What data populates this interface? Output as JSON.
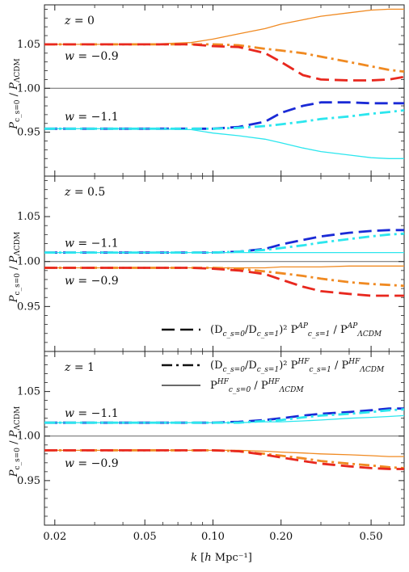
{
  "figure": {
    "ylabel": "P_{c_s=0} / P_ΛCDM",
    "xlabel": "k [h Mpc⁻¹]",
    "x_ticks": [
      "0.02",
      "0.05",
      "0.10",
      "0.20",
      "0.50"
    ],
    "y_ticks": [
      "0.95",
      "1.00",
      "1.05"
    ],
    "legend": [
      {
        "style": "dashed",
        "text_prefix": "(D",
        "text": "(D_{c_s=0}/D_{c_s=1})² P^{AP}_{c_s=1} / P^{AP}_{ΛCDM}"
      },
      {
        "style": "dash-dot",
        "text": "(D_{c_s=0}/D_{c_s=1})² P^{HF}_{c_s=1} / P^{HF}_{ΛCDM}"
      },
      {
        "style": "solid",
        "text": "P^{HF}_{c_s=0} / P^{HF}_{ΛCDM}"
      }
    ]
  },
  "colors": {
    "w_minus_0_9_dashed": "#e8281e",
    "w_minus_0_9_dashdot": "#f08a22",
    "w_minus_0_9_solid": "#f08a22",
    "w_minus_1_1_dashed": "#1a2ad6",
    "w_minus_1_1_dashdot": "#2ce6ee",
    "w_minus_1_1_solid": "#2ce6ee",
    "reference": "#666666"
  },
  "chart_data": [
    {
      "type": "line",
      "panel_label": "z = 0",
      "annotations": [
        "w = −0.9",
        "w = −1.1"
      ],
      "x_scale": "log",
      "xlim": [
        0.018,
        0.7
      ],
      "ylim": [
        0.9,
        1.095
      ],
      "reference_line": 1.0,
      "x": [
        0.018,
        0.03,
        0.05,
        0.08,
        0.1,
        0.13,
        0.17,
        0.2,
        0.25,
        0.3,
        0.4,
        0.5,
        0.6,
        0.7
      ],
      "series": [
        {
          "key": "w_minus_0_9_solid",
          "values": [
            1.05,
            1.05,
            1.05,
            1.052,
            1.056,
            1.062,
            1.068,
            1.073,
            1.078,
            1.082,
            1.086,
            1.089,
            1.09,
            1.09
          ]
        },
        {
          "key": "w_minus_0_9_dashdot",
          "values": [
            1.05,
            1.05,
            1.05,
            1.05,
            1.05,
            1.049,
            1.045,
            1.043,
            1.04,
            1.036,
            1.03,
            1.025,
            1.021,
            1.019
          ]
        },
        {
          "key": "w_minus_0_9_dashed",
          "values": [
            1.05,
            1.05,
            1.05,
            1.05,
            1.048,
            1.047,
            1.04,
            1.03,
            1.015,
            1.01,
            1.009,
            1.009,
            1.01,
            1.013
          ]
        },
        {
          "key": "w_minus_1_1_dashed",
          "values": [
            0.954,
            0.954,
            0.954,
            0.954,
            0.954,
            0.956,
            0.962,
            0.972,
            0.98,
            0.984,
            0.984,
            0.983,
            0.983,
            0.983
          ]
        },
        {
          "key": "w_minus_1_1_dashdot",
          "values": [
            0.954,
            0.954,
            0.954,
            0.954,
            0.954,
            0.955,
            0.957,
            0.959,
            0.962,
            0.965,
            0.968,
            0.971,
            0.973,
            0.975
          ]
        },
        {
          "key": "w_minus_1_1_solid",
          "values": [
            0.954,
            0.954,
            0.954,
            0.953,
            0.949,
            0.946,
            0.942,
            0.938,
            0.932,
            0.928,
            0.924,
            0.921,
            0.92,
            0.92
          ]
        }
      ]
    },
    {
      "type": "line",
      "panel_label": "z = 0.5",
      "annotations": [
        "w = −1.1",
        "w = −0.9"
      ],
      "x_scale": "log",
      "xlim": [
        0.018,
        0.7
      ],
      "ylim": [
        0.9,
        1.095
      ],
      "reference_line": 1.0,
      "x": [
        0.018,
        0.03,
        0.05,
        0.08,
        0.1,
        0.13,
        0.17,
        0.2,
        0.25,
        0.3,
        0.4,
        0.5,
        0.6,
        0.7
      ],
      "series": [
        {
          "key": "w_minus_1_1_dashed",
          "values": [
            1.01,
            1.01,
            1.01,
            1.01,
            1.01,
            1.011,
            1.014,
            1.019,
            1.024,
            1.028,
            1.032,
            1.034,
            1.035,
            1.035
          ]
        },
        {
          "key": "w_minus_1_1_dashdot",
          "values": [
            1.01,
            1.01,
            1.01,
            1.01,
            1.01,
            1.011,
            1.013,
            1.015,
            1.018,
            1.021,
            1.025,
            1.028,
            1.03,
            1.031
          ]
        },
        {
          "key": "w_minus_1_1_solid",
          "values": [
            1.01,
            1.01,
            1.01,
            1.01,
            1.01,
            1.01,
            1.01,
            1.01,
            1.01,
            1.01,
            1.01,
            1.01,
            1.01,
            1.01
          ]
        },
        {
          "key": "w_minus_0_9_solid",
          "values": [
            0.993,
            0.993,
            0.993,
            0.993,
            0.993,
            0.993,
            0.993,
            0.994,
            0.994,
            0.994,
            0.995,
            0.995,
            0.995,
            0.995
          ]
        },
        {
          "key": "w_minus_0_9_dashdot",
          "values": [
            0.993,
            0.993,
            0.993,
            0.993,
            0.993,
            0.992,
            0.989,
            0.987,
            0.984,
            0.981,
            0.977,
            0.975,
            0.974,
            0.973
          ]
        },
        {
          "key": "w_minus_0_9_dashed",
          "values": [
            0.993,
            0.993,
            0.993,
            0.993,
            0.992,
            0.99,
            0.986,
            0.98,
            0.972,
            0.967,
            0.964,
            0.962,
            0.962,
            0.962
          ]
        }
      ]
    },
    {
      "type": "line",
      "panel_label": "z = 1",
      "annotations": [
        "w = −1.1",
        "w = −0.9"
      ],
      "x_scale": "log",
      "xlim": [
        0.018,
        0.7
      ],
      "ylim": [
        0.9,
        1.095
      ],
      "reference_line": 1.0,
      "x": [
        0.018,
        0.03,
        0.05,
        0.08,
        0.1,
        0.13,
        0.17,
        0.2,
        0.25,
        0.3,
        0.4,
        0.5,
        0.6,
        0.7
      ],
      "series": [
        {
          "key": "w_minus_1_1_dashed",
          "values": [
            1.015,
            1.015,
            1.015,
            1.015,
            1.015,
            1.016,
            1.018,
            1.02,
            1.023,
            1.025,
            1.027,
            1.029,
            1.031,
            1.031
          ]
        },
        {
          "key": "w_minus_1_1_dashdot",
          "values": [
            1.015,
            1.015,
            1.015,
            1.015,
            1.015,
            1.015,
            1.017,
            1.018,
            1.021,
            1.023,
            1.025,
            1.027,
            1.029,
            1.03
          ]
        },
        {
          "key": "w_minus_1_1_solid",
          "values": [
            1.015,
            1.015,
            1.015,
            1.015,
            1.015,
            1.015,
            1.016,
            1.016,
            1.017,
            1.018,
            1.02,
            1.021,
            1.022,
            1.023
          ]
        },
        {
          "key": "w_minus_0_9_solid",
          "values": [
            0.984,
            0.984,
            0.984,
            0.984,
            0.984,
            0.984,
            0.983,
            0.982,
            0.981,
            0.98,
            0.979,
            0.978,
            0.977,
            0.977
          ]
        },
        {
          "key": "w_minus_0_9_dashdot",
          "values": [
            0.984,
            0.984,
            0.984,
            0.984,
            0.984,
            0.983,
            0.98,
            0.978,
            0.975,
            0.972,
            0.969,
            0.967,
            0.965,
            0.964
          ]
        },
        {
          "key": "w_minus_0_9_dashed",
          "values": [
            0.984,
            0.984,
            0.984,
            0.984,
            0.984,
            0.983,
            0.979,
            0.976,
            0.972,
            0.969,
            0.966,
            0.964,
            0.963,
            0.963
          ]
        }
      ]
    }
  ]
}
